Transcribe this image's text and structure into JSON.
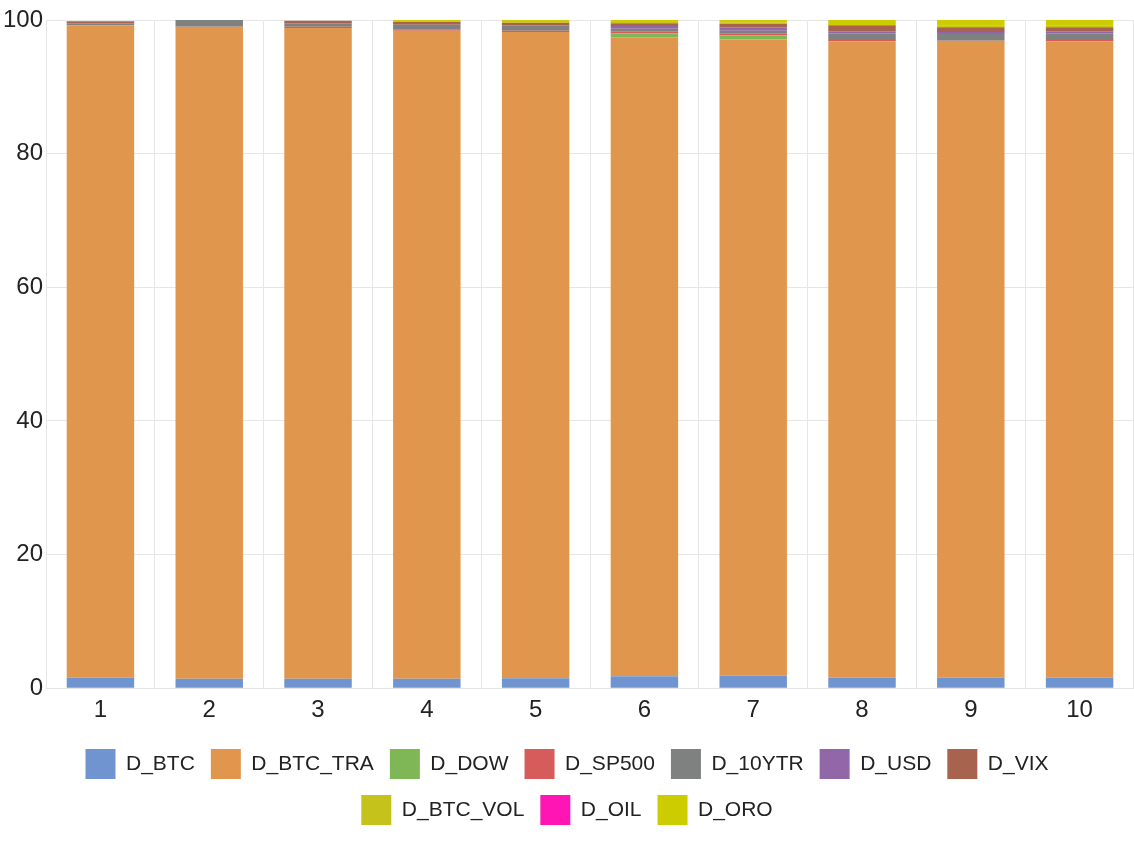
{
  "chart_data": {
    "type": "bar",
    "stacked": true,
    "categories": [
      "1",
      "2",
      "3",
      "4",
      "5",
      "6",
      "7",
      "8",
      "9",
      "10"
    ],
    "ylim": [
      0,
      100
    ],
    "yticks": [
      0,
      20,
      40,
      60,
      80,
      100
    ],
    "grid": true,
    "legend": "bottom",
    "series": [
      {
        "name": "D_BTC",
        "color": "#7094cf",
        "values": [
          1.6,
          1.4,
          1.4,
          1.4,
          1.5,
          1.8,
          1.9,
          1.6,
          1.6,
          1.6
        ]
      },
      {
        "name": "D_BTC_TRA",
        "color": "#e0964d",
        "values": [
          97.6,
          97.6,
          97.4,
          97.0,
          96.7,
          95.6,
          95.2,
          95.2,
          95.3,
          95.2
        ]
      },
      {
        "name": "D_DOW",
        "color": "#7fb756",
        "values": [
          0,
          0,
          0,
          0,
          0,
          0.6,
          0.6,
          0,
          0,
          0
        ]
      },
      {
        "name": "D_SP500",
        "color": "#d65b5b",
        "values": [
          null,
          0,
          0.2,
          0.2,
          0.2,
          0.3,
          0.3,
          0.2,
          0,
          0.2
        ]
      },
      {
        "name": "D_10YTR",
        "color": "#7f8181",
        "values": [
          0.3,
          1.0,
          0.5,
          0.7,
          0.8,
          0.4,
          0.4,
          1.0,
          1.0,
          1.0
        ]
      },
      {
        "name": "D_USD",
        "color": "#9167a8",
        "values": [
          0,
          0,
          0,
          0,
          0,
          0.4,
          0.5,
          0.3,
          0.3,
          0.3
        ]
      },
      {
        "name": "D_VIX",
        "color": "#a8634f",
        "values": [
          0.3,
          0,
          0.4,
          0.4,
          0.4,
          0.4,
          0.5,
          0.9,
          0.7,
          0.6
        ]
      },
      {
        "name": "D_BTC_VOL",
        "color": "#c4c21b",
        "values": [
          0,
          0,
          0,
          0,
          0,
          0.2,
          0.2,
          0,
          0.3,
          0.3
        ]
      },
      {
        "name": "D_OIL",
        "color": "#ff14b4",
        "values": [
          0,
          0,
          0,
          0,
          0,
          0,
          0,
          0,
          0,
          0
        ]
      },
      {
        "name": "D_ORO",
        "color": "#cccc00",
        "values": [
          null,
          0,
          null,
          0.3,
          0.4,
          0.3,
          0.4,
          0.8,
          0.8,
          0.8
        ]
      }
    ]
  }
}
